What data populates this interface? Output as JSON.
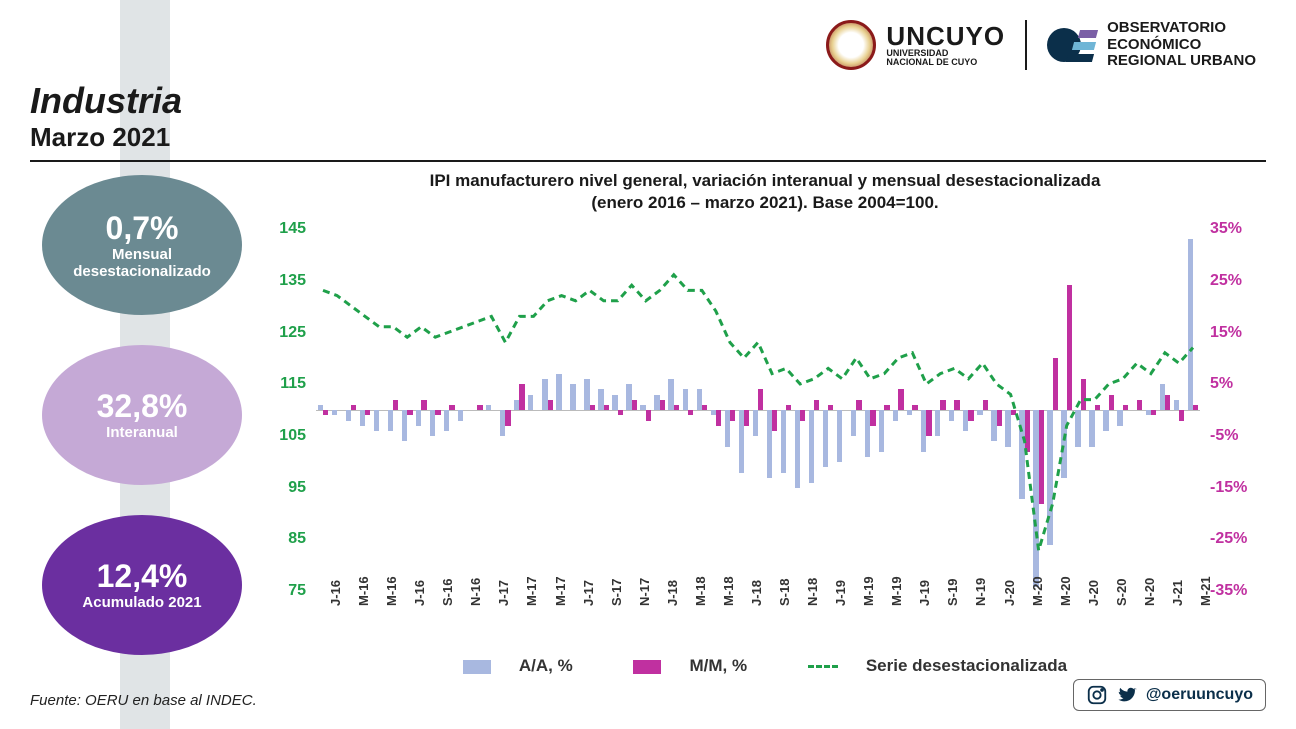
{
  "header": {
    "uncuyo_big": "UNCUYO",
    "uncuyo_sub1": "UNIVERSIDAD",
    "uncuyo_sub2": "NACIONAL DE CUYO",
    "oeru_l1": "OBSERVATORIO",
    "oeru_l2": "ECONÓMICO",
    "oeru_l3": "REGIONAL URBANO"
  },
  "title": {
    "main": "Industria",
    "sub": "Marzo 2021"
  },
  "bubbles": [
    {
      "value": "0,7%",
      "label": "Mensual desestacionalizado",
      "bg": "#6b8a92"
    },
    {
      "value": "32,8%",
      "label": "Interanual",
      "bg": "#c5a9d6"
    },
    {
      "value": "12,4%",
      "label": "Acumulado 2021",
      "bg": "#6b2fa0"
    }
  ],
  "chart": {
    "title_l1": "IPI manufacturero nivel general, variación interanual y mensual desestacionalizada",
    "title_l2": "(enero 2016 – marzo 2021). Base 2004=100.",
    "left_axis": {
      "min": 75,
      "max": 145,
      "ticks": [
        145,
        135,
        125,
        115,
        105,
        95,
        85,
        75
      ],
      "color": "#1fa04a"
    },
    "right_axis": {
      "min": -35,
      "max": 35,
      "ticks": [
        "35%",
        "25%",
        "15%",
        "5%",
        "-5%",
        "-15%",
        "-25%",
        "-35%"
      ],
      "color": "#c030a0"
    },
    "colors": {
      "aa": "#a8b8e0",
      "mm": "#c030a0",
      "line": "#1fa04a",
      "bg": "#ffffff"
    },
    "legend": {
      "aa": "A/A, %",
      "mm": "M/M, %",
      "line": "Serie desestacionalizada"
    },
    "categories": [
      "J-16",
      "",
      "M-16",
      "",
      "M-16",
      "",
      "J-16",
      "",
      "S-16",
      "",
      "N-16",
      "",
      "J-17",
      "",
      "M-17",
      "",
      "M-17",
      "",
      "J-17",
      "",
      "S-17",
      "",
      "N-17",
      "",
      "J-18",
      "",
      "M-18",
      "",
      "M-18",
      "",
      "J-18",
      "",
      "S-18",
      "",
      "N-18",
      "",
      "J-19",
      "",
      "M-19",
      "",
      "M-19",
      "",
      "J-19",
      "",
      "S-19",
      "",
      "N-19",
      "",
      "J-20",
      "",
      "M-20",
      "",
      "M-20",
      "",
      "J-20",
      "",
      "S-20",
      "",
      "N-20",
      "",
      "J-21",
      "",
      "M-21"
    ],
    "aa": [
      1,
      -1,
      -2,
      -3,
      -4,
      -4,
      -6,
      -3,
      -5,
      -4,
      -2,
      0,
      1,
      -5,
      2,
      3,
      6,
      7,
      5,
      6,
      4,
      3,
      5,
      1,
      3,
      6,
      4,
      4,
      -1,
      -7,
      -12,
      -5,
      -13,
      -12,
      -15,
      -14,
      -11,
      -10,
      -5,
      -9,
      -8,
      -2,
      -1,
      -8,
      -5,
      -2,
      -4,
      -1,
      -6,
      -7,
      -17,
      -34,
      -26,
      -13,
      -7,
      -7,
      -4,
      -3,
      0,
      -1,
      5,
      2,
      33
    ],
    "mm": [
      -1,
      0,
      1,
      -1,
      0,
      2,
      -1,
      2,
      -1,
      1,
      0,
      1,
      0,
      -3,
      5,
      0,
      2,
      0,
      0,
      1,
      1,
      -1,
      2,
      -2,
      2,
      1,
      -1,
      1,
      -3,
      -2,
      -3,
      4,
      -4,
      1,
      -2,
      2,
      1,
      0,
      2,
      -3,
      1,
      4,
      1,
      -5,
      2,
      2,
      -2,
      2,
      -3,
      -1,
      -8,
      -18,
      10,
      24,
      6,
      1,
      3,
      1,
      2,
      -1,
      3,
      -2,
      1
    ],
    "line": [
      133,
      132,
      130,
      128,
      126,
      126,
      124,
      126,
      124,
      125,
      126,
      127,
      128,
      123,
      128,
      128,
      131,
      132,
      131,
      133,
      131,
      131,
      134,
      131,
      133,
      136,
      133,
      133,
      129,
      123,
      120,
      123,
      117,
      118,
      115,
      116,
      118,
      116,
      120,
      116,
      117,
      120,
      121,
      115,
      117,
      118,
      116,
      119,
      115,
      113,
      104,
      83,
      92,
      107,
      112,
      112,
      115,
      116,
      119,
      117,
      121,
      119,
      122
    ]
  },
  "source": "Fuente: OERU en base al INDEC.",
  "social": {
    "handle": "@oeruuncuyo"
  }
}
